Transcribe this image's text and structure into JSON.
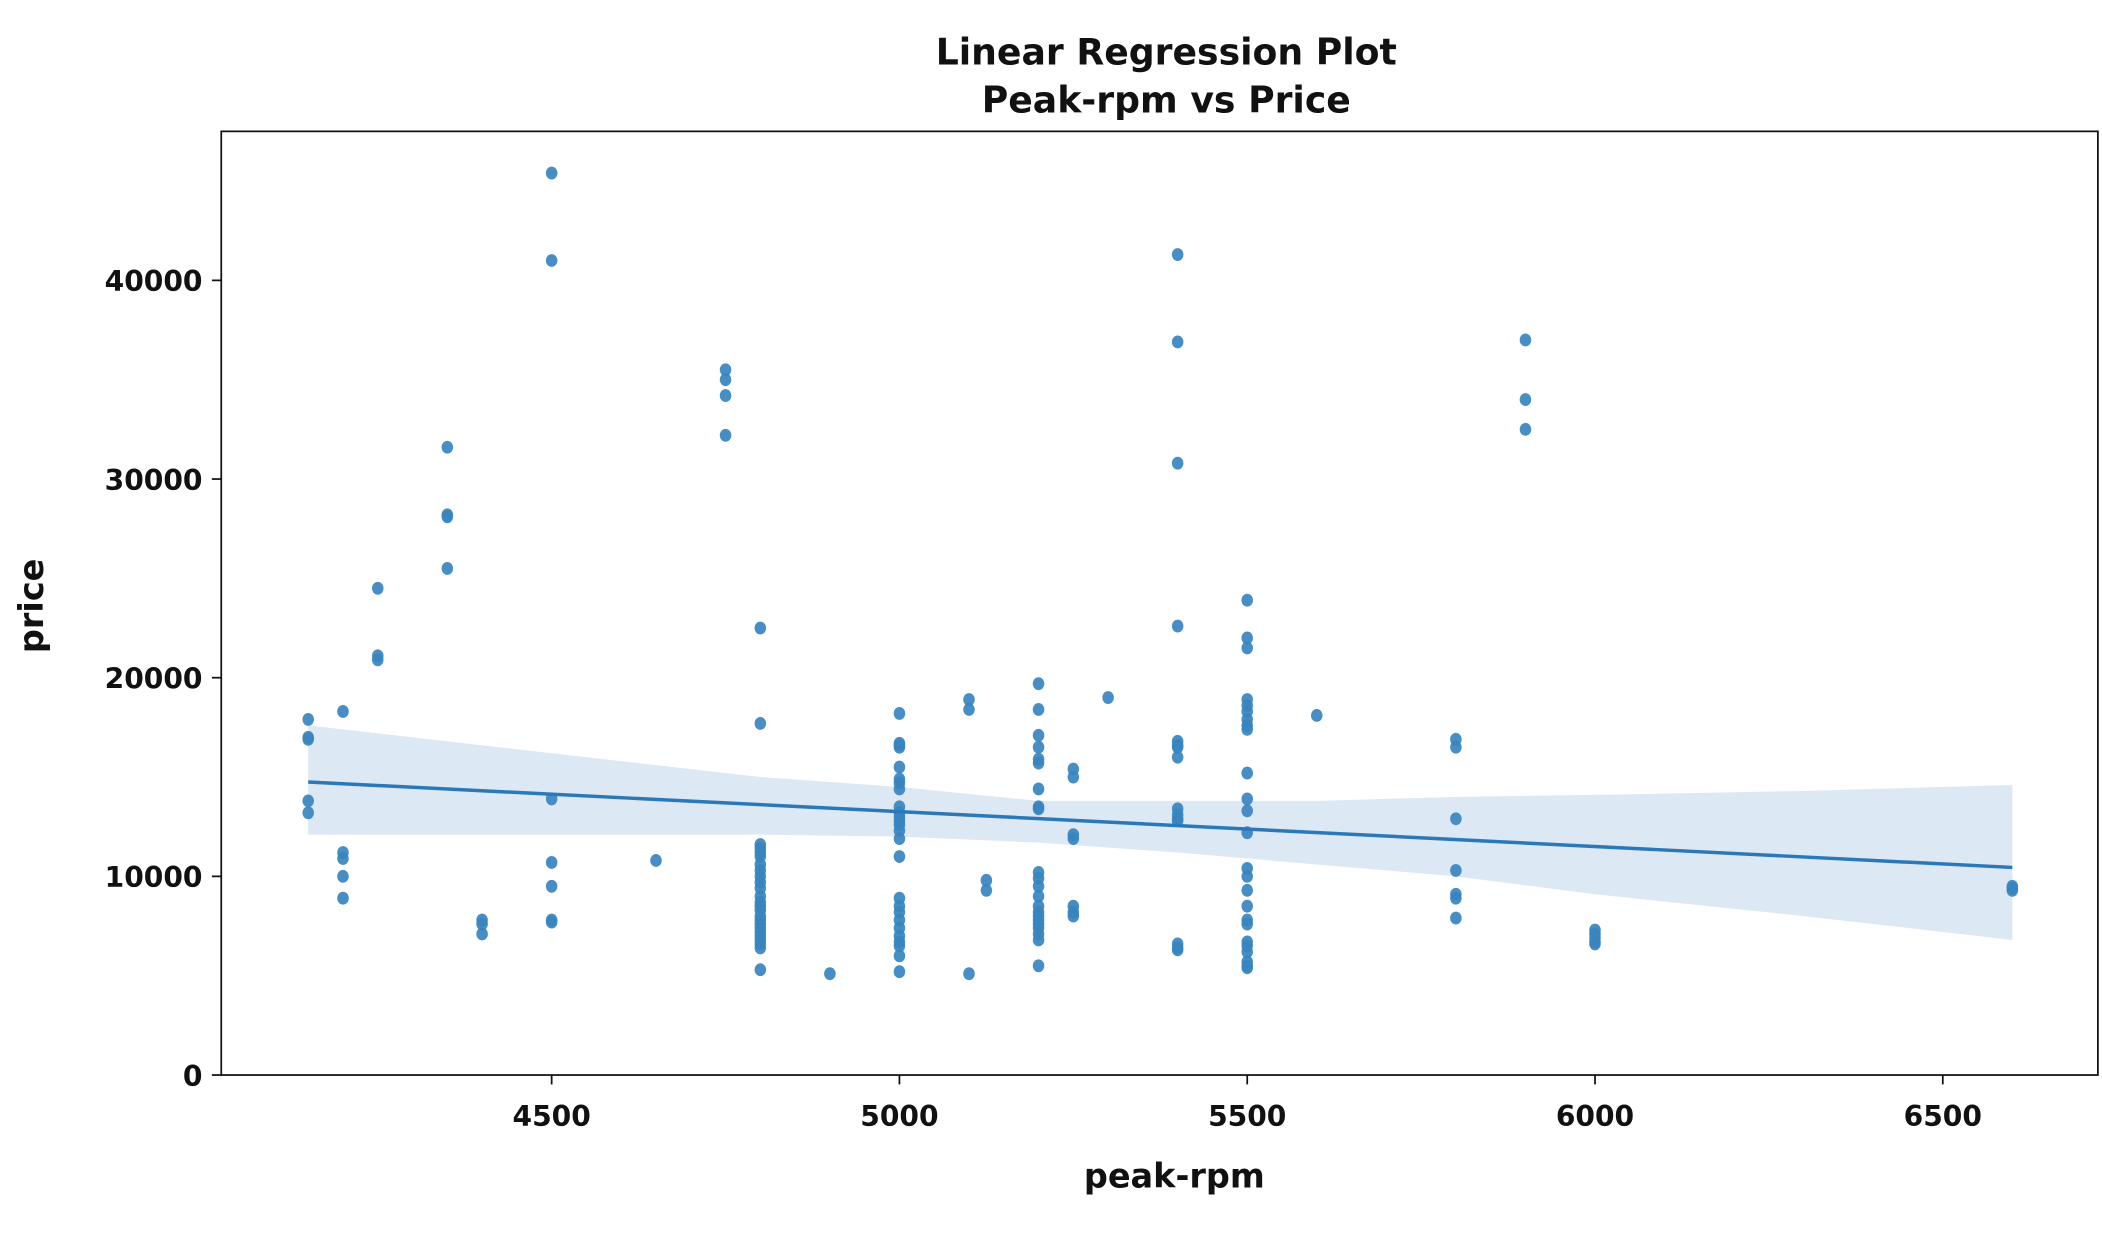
{
  "chart_data": {
    "type": "scatter",
    "title": "Linear Regression Plot",
    "subtitle": "Peak-rpm vs Price",
    "xlabel": "peak-rpm",
    "ylabel": "price",
    "xlim": [
      4025,
      6723
    ],
    "ylim": [
      0,
      47500
    ],
    "xticks": [
      4500,
      5000,
      5500,
      6000,
      6500
    ],
    "yticks": [
      0,
      10000,
      20000,
      30000,
      40000
    ],
    "grid": false,
    "colors": {
      "points": "#3784bf",
      "line": "#2a78b8",
      "band": "#dce8f3"
    },
    "points": [
      [
        4150,
        [
          17900,
          17000,
          16900,
          13800,
          13200
        ]
      ],
      [
        4200,
        [
          18300,
          11200,
          10900,
          10000,
          8900
        ]
      ],
      [
        4250,
        [
          24500,
          21100,
          20900
        ]
      ],
      [
        4350,
        [
          31600,
          28200,
          28100,
          25500
        ]
      ],
      [
        4400,
        [
          7800,
          7600,
          7100
        ]
      ],
      [
        4500,
        [
          45400,
          41000,
          13900,
          10700,
          9500,
          7800,
          7700
        ]
      ],
      [
        4650,
        [
          10800
        ]
      ],
      [
        4750,
        [
          35500,
          35000,
          34200,
          32200
        ]
      ],
      [
        4800,
        [
          22500,
          17700,
          11600,
          11400,
          11200,
          11000,
          10600,
          10300,
          10000,
          9700,
          9400,
          9000,
          8700,
          8500,
          8300,
          8000,
          7800,
          7600,
          7400,
          7200,
          7000,
          6800,
          6600,
          6400,
          5300
        ]
      ],
      [
        4900,
        [
          5100
        ]
      ],
      [
        5000,
        [
          18200,
          16700,
          16600,
          16500,
          15500,
          14900,
          14700,
          14400,
          13500,
          13200,
          13000,
          12800,
          12600,
          12300,
          11900,
          11000,
          8900,
          8500,
          8200,
          7800,
          7400,
          7000,
          6700,
          6500,
          6000,
          5200
        ]
      ],
      [
        5100,
        [
          18900,
          18400,
          5100
        ]
      ],
      [
        5125,
        [
          9800,
          9300
        ]
      ],
      [
        5200,
        [
          19700,
          18400,
          17100,
          16500,
          15900,
          15700,
          14400,
          13500,
          13400,
          10200,
          9900,
          9500,
          9000,
          8500,
          8200,
          8000,
          7800,
          7600,
          7400,
          7100,
          6800,
          5500
        ]
      ],
      [
        5250,
        [
          15400,
          15000,
          12100,
          11900,
          8500,
          8200,
          8000
        ]
      ],
      [
        5300,
        [
          19000
        ]
      ],
      [
        5400,
        [
          41300,
          36900,
          30800,
          22600,
          16800,
          16600,
          16500,
          16000,
          13400,
          13100,
          12900,
          12800,
          6600,
          6400,
          6300
        ]
      ],
      [
        5500,
        [
          23900,
          22000,
          21500,
          18900,
          18600,
          18300,
          17900,
          17600,
          17400,
          15200,
          13900,
          13300,
          12200,
          10400,
          10000,
          9300,
          8500,
          7800,
          7600,
          6700,
          6500,
          6200,
          5700,
          5500,
          5400
        ]
      ],
      [
        5600,
        [
          18100
        ]
      ],
      [
        5800,
        [
          16900,
          16500,
          12900,
          10300,
          9100,
          8900,
          7900
        ]
      ],
      [
        5900,
        [
          37000,
          34000,
          32500
        ]
      ],
      [
        6000,
        [
          7300,
          7100,
          6900,
          6700,
          6600
        ]
      ],
      [
        6600,
        [
          9500,
          9400,
          9300
        ]
      ]
    ],
    "regression": {
      "x": [
        4150,
        6600
      ],
      "y": [
        14750,
        10450
      ]
    },
    "confidence_band": {
      "x": [
        4150,
        4500,
        4800,
        5000,
        5200,
        5400,
        5600,
        5800,
        6000,
        6300,
        6600
      ],
      "upper": [
        17600,
        16200,
        15000,
        14500,
        13800,
        13800,
        13800,
        14000,
        14100,
        14300,
        14600
      ],
      "lower": [
        12100,
        12100,
        12100,
        12000,
        11700,
        11200,
        10600,
        10000,
        9100,
        8000,
        6800
      ]
    }
  }
}
